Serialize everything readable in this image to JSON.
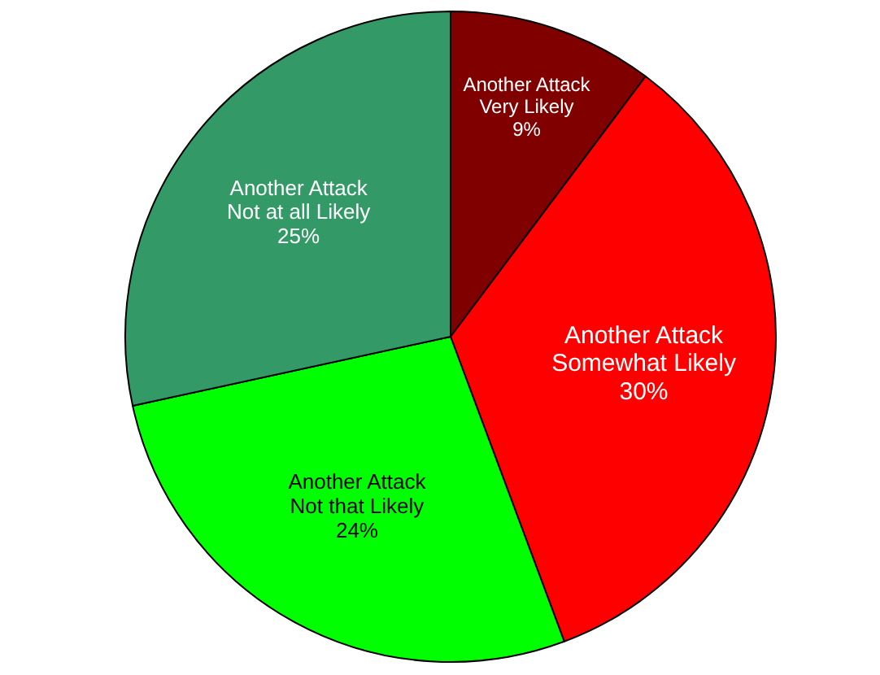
{
  "chart_data": {
    "type": "pie",
    "categories": [
      "Another Attack\nVery Likely",
      "Another Attack\nSomewhat Likely",
      "Another Attack\nNot that Likely",
      "Another Attack\nNot at all Likely"
    ],
    "values": [
      9,
      30,
      24,
      25
    ],
    "value_labels": [
      "9%",
      "30%",
      "24%",
      "25%"
    ],
    "colors": [
      "#800000",
      "#ff0000",
      "#00ff00",
      "#339966"
    ]
  }
}
